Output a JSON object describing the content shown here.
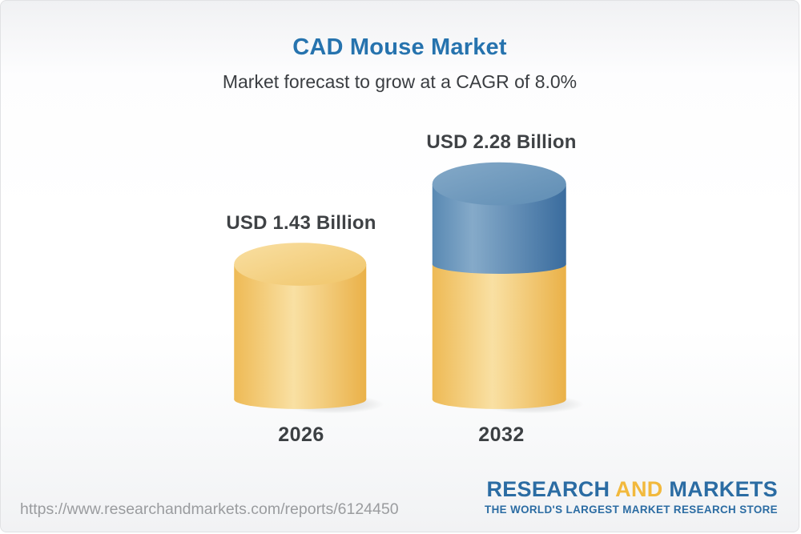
{
  "header": {
    "title": "CAD Mouse Market",
    "subtitle": "Market forecast to grow at a CAGR of 8.0%"
  },
  "chart_data": {
    "type": "bar",
    "variant": "3d-cylinder-stacked",
    "title": "CAD Mouse Market",
    "subtitle": "Market forecast to grow at a CAGR of 8.0%",
    "unit": "USD Billion",
    "cagr": "8.0%",
    "categories": [
      "2026",
      "2032"
    ],
    "values": [
      1.43,
      2.28
    ],
    "value_labels": [
      "USD 1.43 Billion",
      "USD 2.28 Billion"
    ],
    "ylim": [
      0,
      2.28
    ],
    "legend": "none",
    "bars": [
      {
        "category": "2026",
        "total": 1.43,
        "segments": [
          {
            "value": 1.43,
            "color_key": "yellow"
          }
        ]
      },
      {
        "category": "2032",
        "total": 2.28,
        "segments": [
          {
            "value": 1.43,
            "color_key": "yellow"
          },
          {
            "value": 0.85,
            "color_key": "blue"
          }
        ]
      }
    ]
  },
  "colors": {
    "title_blue": "#2673ae",
    "text_dark": "#3f4245",
    "url_gray": "#9a9c9f",
    "logo_blue": "#2b6ca3",
    "logo_yellow": "#f2b93d",
    "yellow_body": [
      "#eeba55",
      "#f9e0a3",
      "#eab148"
    ],
    "yellow_top": [
      "#f9dfa2",
      "#f0c569"
    ],
    "blue_body": [
      "#5989b3",
      "#85aac9",
      "#3a6c9e"
    ],
    "blue_top": [
      "#84a9c8",
      "#5f8db4"
    ],
    "shadow": "#828282"
  },
  "footer": {
    "url": "https://www.researchandmarkets.com/reports/6124450",
    "logo": {
      "research": "RESEARCH",
      "and": "AND",
      "markets": "MARKETS",
      "tagline": "THE WORLD'S LARGEST MARKET RESEARCH STORE"
    }
  }
}
